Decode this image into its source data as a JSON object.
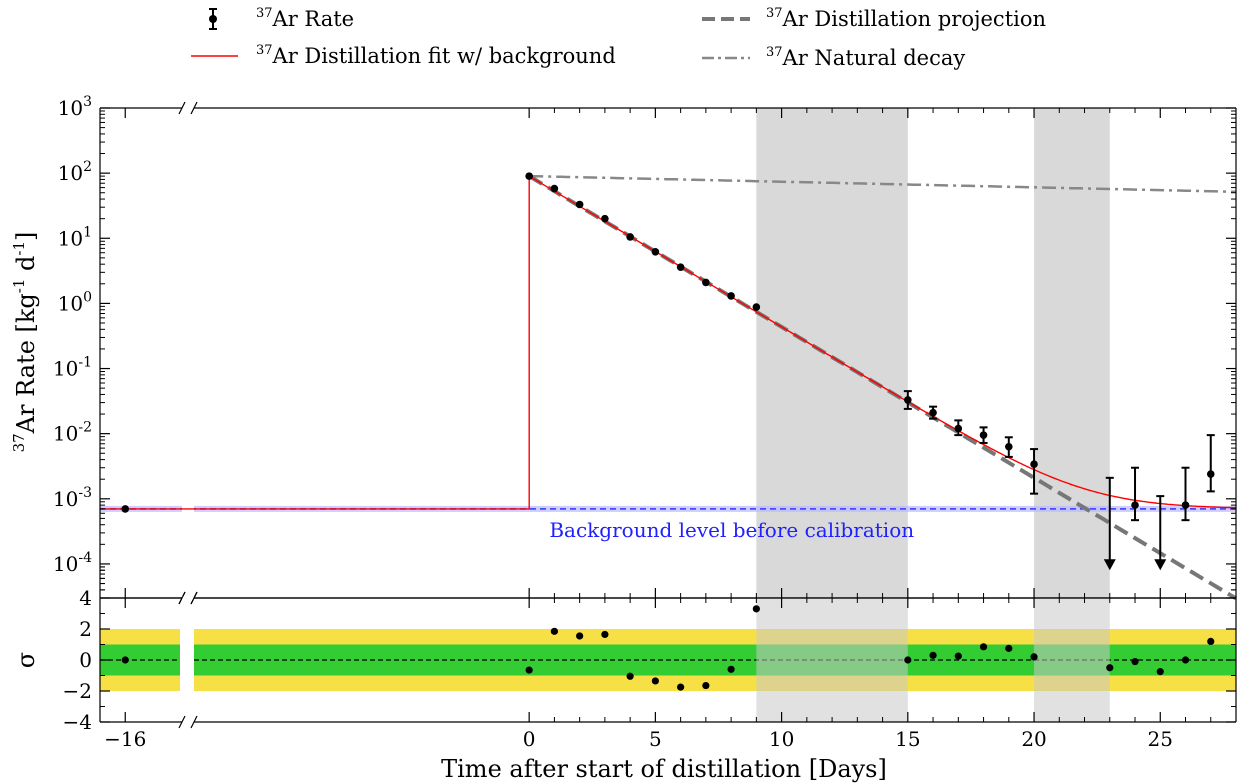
{
  "chart_data": [
    {
      "type": "scatter",
      "panel": "main",
      "yscale": "log",
      "ylabel": "^37Ar Rate [kg^-1 d^-1]",
      "xlim": [
        -17,
        28
      ],
      "ylim": [
        3e-05,
        1000
      ],
      "axis_break": "between day -16 and day 0",
      "shaded_intervals": [
        [
          9,
          15
        ],
        [
          20,
          23
        ]
      ],
      "legend": {
        "placement": "above plot",
        "entries": [
          {
            "key": "rate",
            "label": "Ar Rate",
            "sup": "37"
          },
          {
            "key": "fit",
            "label": "Ar Distillation fit w/ background",
            "sup": "37"
          },
          {
            "key": "projection",
            "label": "Ar Distillation projection",
            "sup": "37"
          },
          {
            "key": "decay",
            "label": "Ar Natural decay",
            "sup": "37"
          }
        ]
      },
      "annotation": "Background level before calibration",
      "background_level": 0.0007,
      "series": [
        {
          "name": "37Ar Rate",
          "style": "black points with error bars",
          "points": [
            {
              "x": -16,
              "y": 0.0007
            },
            {
              "x": 0,
              "y": 90
            },
            {
              "x": 1,
              "y": 58
            },
            {
              "x": 2,
              "y": 33
            },
            {
              "x": 3,
              "y": 20
            },
            {
              "x": 4,
              "y": 10.5
            },
            {
              "x": 5,
              "y": 6.2
            },
            {
              "x": 6,
              "y": 3.6
            },
            {
              "x": 7,
              "y": 2.1
            },
            {
              "x": 8,
              "y": 1.3
            },
            {
              "x": 9,
              "y": 0.88
            },
            {
              "x": 15,
              "y": 0.033,
              "ylo": 0.024,
              "yhi": 0.045
            },
            {
              "x": 16,
              "y": 0.021,
              "ylo": 0.017,
              "yhi": 0.026
            },
            {
              "x": 17,
              "y": 0.012,
              "ylo": 0.0095,
              "yhi": 0.016
            },
            {
              "x": 18,
              "y": 0.0095,
              "ylo": 0.0072,
              "yhi": 0.0125
            },
            {
              "x": 19,
              "y": 0.0063,
              "ylo": 0.0044,
              "yhi": 0.0088
            },
            {
              "x": 20,
              "y": 0.0034,
              "ylo": 0.0012,
              "yhi": 0.0058
            },
            {
              "x": 23,
              "upper_limit": 0.0021,
              "arrow_to": 8e-05
            },
            {
              "x": 24,
              "y": 0.0008,
              "ylo": 0.00047,
              "yhi": 0.003
            },
            {
              "x": 25,
              "upper_limit": 0.0011,
              "arrow_to": 8e-05
            },
            {
              "x": 26,
              "y": 0.0008,
              "ylo": 0.00047,
              "yhi": 0.003
            },
            {
              "x": 27,
              "y": 0.0024,
              "ylo": 0.0013,
              "yhi": 0.0095
            }
          ]
        },
        {
          "name": "37Ar Distillation fit w/ background",
          "style": "red solid line",
          "color": "#ff0000",
          "model": {
            "A0": 90,
            "half_life_days": 1.3,
            "background": 0.0007,
            "step_at_x": 0
          }
        },
        {
          "name": "37Ar Distillation projection",
          "style": "grey dashed line",
          "color": "#777777",
          "model": {
            "A0": 90,
            "half_life_days": 1.3,
            "x_start": 0
          }
        },
        {
          "name": "37Ar Natural decay",
          "style": "grey dash-dot line",
          "color": "#888888",
          "model": {
            "A0": 90,
            "half_life_days": 35,
            "x_start": 0
          }
        },
        {
          "name": "Background level before calibration",
          "style": "blue dashed band",
          "color": "#6b6bff",
          "y": 0.0007
        }
      ]
    },
    {
      "type": "scatter",
      "panel": "residuals",
      "ylabel": "σ",
      "xlabel": "Time after start of distillation [Days]",
      "xlim": [
        -17,
        28
      ],
      "ylim": [
        -4,
        4
      ],
      "bands": [
        {
          "name": "±2σ",
          "range": [
            -2,
            2
          ],
          "color": "#f7e045"
        },
        {
          "name": "±1σ",
          "range": [
            -1,
            1
          ],
          "color": "#33cc33"
        }
      ],
      "zero_line": {
        "style": "black dashed"
      },
      "series": [
        {
          "name": "residuals",
          "points": [
            {
              "x": -16,
              "y": 0.0
            },
            {
              "x": 0,
              "y": -0.65
            },
            {
              "x": 1,
              "y": 1.85
            },
            {
              "x": 2,
              "y": 1.55
            },
            {
              "x": 3,
              "y": 1.65
            },
            {
              "x": 4,
              "y": -1.05
            },
            {
              "x": 5,
              "y": -1.35
            },
            {
              "x": 6,
              "y": -1.75
            },
            {
              "x": 7,
              "y": -1.65
            },
            {
              "x": 8,
              "y": -0.6
            },
            {
              "x": 9,
              "y": 3.3
            },
            {
              "x": 15,
              "y": 0.0
            },
            {
              "x": 16,
              "y": 0.3
            },
            {
              "x": 17,
              "y": 0.25
            },
            {
              "x": 18,
              "y": 0.85
            },
            {
              "x": 19,
              "y": 0.75
            },
            {
              "x": 20,
              "y": 0.2
            },
            {
              "x": 23,
              "y": -0.5
            },
            {
              "x": 24,
              "y": -0.1
            },
            {
              "x": 25,
              "y": -0.75
            },
            {
              "x": 26,
              "y": 0.0
            },
            {
              "x": 27,
              "y": 1.2
            }
          ]
        }
      ]
    }
  ],
  "ticks": {
    "main_y": [
      {
        "base": "10",
        "exp": "3",
        "value": 1000
      },
      {
        "base": "10",
        "exp": "2",
        "value": 100
      },
      {
        "base": "10",
        "exp": "1",
        "value": 10
      },
      {
        "base": "10",
        "exp": "0",
        "value": 1
      },
      {
        "base": "10",
        "exp": "-1",
        "value": 0.1
      },
      {
        "base": "10",
        "exp": "-2",
        "value": 0.01
      },
      {
        "base": "10",
        "exp": "-3",
        "value": 0.001
      },
      {
        "base": "10",
        "exp": "-4",
        "value": 0.0001
      }
    ],
    "res_y": [
      {
        "label": "4",
        "value": 4
      },
      {
        "label": "2",
        "value": 2
      },
      {
        "label": "0",
        "value": 0
      },
      {
        "label": "−2",
        "value": -2
      },
      {
        "label": "−4",
        "value": -4
      }
    ],
    "x": [
      {
        "label": "−16",
        "value": -16
      },
      {
        "label": "0",
        "value": 0
      },
      {
        "label": "5",
        "value": 5
      },
      {
        "label": "10",
        "value": 10
      },
      {
        "label": "15",
        "value": 15
      },
      {
        "label": "20",
        "value": 20
      },
      {
        "label": "25",
        "value": 25
      }
    ]
  },
  "labels": {
    "ylabel_main_sup": "37",
    "ylabel_main_text": "Ar Rate [kg",
    "ylabel_main_exp1": "-1",
    "ylabel_main_mid": " d",
    "ylabel_main_exp2": "-1",
    "ylabel_main_end": "]",
    "ylabel_res": "σ",
    "xlabel": "Time after start of distillation [Days]",
    "annotation": "Background level before calibration"
  }
}
